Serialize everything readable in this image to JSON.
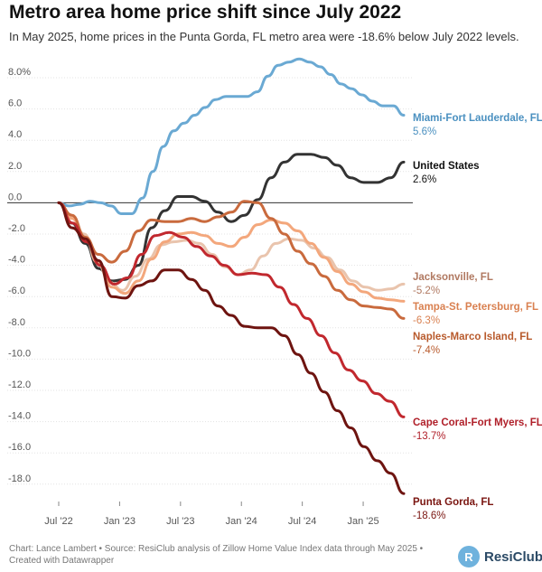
{
  "header": {
    "title": "Metro area home price shift since July 2022",
    "subtitle": "In May 2025, home prices in the Punta Gorda, FL metro area were -18.6% below July 2022 levels."
  },
  "footer": {
    "credit": "Chart: Lance Lambert • Source: ResiClub analysis of Zillow Home Value Index data through May 2025 • Created with Datawrapper"
  },
  "brand": {
    "name": "ResiClub",
    "icon": "resiclub-logo-icon"
  },
  "chart_data": {
    "type": "line",
    "title": "Metro area home price shift since July 2022",
    "xlabel": "",
    "ylabel": "",
    "ylim": [
      -18.6,
      9.2
    ],
    "xlim": [
      0,
      34
    ],
    "x_ticks": [
      {
        "month": 0,
        "label": "Jul '22"
      },
      {
        "month": 6,
        "label": "Jan '23"
      },
      {
        "month": 12,
        "label": "Jul '23"
      },
      {
        "month": 18,
        "label": "Jan '24"
      },
      {
        "month": 24,
        "label": "Jul '24"
      },
      {
        "month": 30,
        "label": "Jan '25"
      }
    ],
    "y_ticks": [
      {
        "value": 8,
        "label": "8.0%"
      },
      {
        "value": 6,
        "label": "6.0"
      },
      {
        "value": 4,
        "label": "4.0"
      },
      {
        "value": 2,
        "label": "2.0"
      },
      {
        "value": 0,
        "label": "0.0"
      },
      {
        "value": -2,
        "label": "-2.0"
      },
      {
        "value": -4,
        "label": "-4.0"
      },
      {
        "value": -6,
        "label": "-6.0"
      },
      {
        "value": -8,
        "label": "-8.0"
      },
      {
        "value": -10,
        "label": "-10.0"
      },
      {
        "value": -12,
        "label": "-12.0"
      },
      {
        "value": -14,
        "label": "-14.0"
      },
      {
        "value": -16,
        "label": "-16.0"
      },
      {
        "value": -18,
        "label": "-18.0"
      }
    ],
    "series": [
      {
        "key": "miami",
        "name": "Miami-Fort Lauderdale, FL",
        "final_label": "5.6%",
        "color": "#6aa9d3",
        "name_color": "#4a90c0",
        "values": [
          0,
          -0.2,
          -0.1,
          0.1,
          0,
          -0.2,
          -0.7,
          -0.7,
          0.3,
          2.0,
          3.6,
          4.6,
          5.1,
          5.6,
          6.1,
          6.6,
          6.8,
          6.8,
          6.8,
          7.1,
          8.1,
          8.8,
          9.0,
          9.2,
          9.0,
          8.7,
          8.2,
          7.6,
          7.3,
          6.9,
          6.5,
          6.2,
          6.2,
          5.6
        ]
      },
      {
        "key": "us",
        "name": "United States",
        "final_label": "2.6%",
        "color": "#333333",
        "name_color": "#111111",
        "values": [
          0,
          -1.3,
          -2.6,
          -4.2,
          -5.0,
          -4.9,
          -4.0,
          -1.6,
          -0.5,
          0.4,
          0.4,
          0.1,
          -0.6,
          -1.2,
          -0.8,
          0.2,
          1.6,
          2.6,
          3.1,
          3.1,
          2.9,
          2.4,
          1.6,
          1.3,
          1.3,
          1.6,
          2.6
        ]
      },
      {
        "key": "jacksonville",
        "name": "Jacksonville, FL",
        "final_label": "-5.2%",
        "color": "#e9c4ad",
        "name_color": "#b07860",
        "values": [
          0,
          -0.9,
          -2.0,
          -3.8,
          -5.1,
          -5.6,
          -4.7,
          -3.6,
          -2.7,
          -2.5,
          -2.4,
          -2.6,
          -3.3,
          -4.1,
          -4.6,
          -4.3,
          -3.4,
          -2.6,
          -2.3,
          -2.4,
          -2.9,
          -3.5,
          -4.3,
          -5.0,
          -5.4,
          -5.6,
          -5.5,
          -5.2
        ]
      },
      {
        "key": "tampa",
        "name": "Tampa-St. Petersburg, FL",
        "final_label": "-6.3%",
        "color": "#f3a77c",
        "name_color": "#d98050",
        "values": [
          0,
          -1.0,
          -2.2,
          -3.9,
          -5.4,
          -5.8,
          -5.0,
          -3.6,
          -2.5,
          -2.0,
          -1.9,
          -2.1,
          -2.6,
          -2.8,
          -2.2,
          -1.4,
          -1.1,
          -1.3,
          -1.8,
          -2.6,
          -3.5,
          -4.4,
          -5.2,
          -5.7,
          -6.1,
          -6.2,
          -6.3
        ]
      },
      {
        "key": "naples",
        "name": "Naples-Marco Island, FL",
        "final_label": "-7.4%",
        "color": "#c96a3d",
        "name_color": "#b85a2c",
        "values": [
          0,
          -0.8,
          -2.2,
          -3.3,
          -3.8,
          -3.1,
          -1.8,
          -1.1,
          -1.2,
          -1.2,
          -1.0,
          -1.2,
          -0.9,
          -0.6,
          0.1,
          0.0,
          -1.0,
          -2.0,
          -3.1,
          -3.9,
          -4.7,
          -5.6,
          -6.2,
          -6.6,
          -6.7,
          -6.8,
          -7.4
        ]
      },
      {
        "key": "cape",
        "name": "Cape Coral-Fort Myers, FL",
        "final_label": "-13.7%",
        "color": "#c1282e",
        "name_color": "#b0202a",
        "values": [
          0,
          -1.3,
          -2.5,
          -4.0,
          -5.2,
          -4.8,
          -3.3,
          -2.1,
          -1.9,
          -2.2,
          -2.8,
          -3.4,
          -4.0,
          -4.6,
          -4.5,
          -4.6,
          -5.4,
          -6.5,
          -7.4,
          -8.5,
          -9.6,
          -10.7,
          -11.4,
          -12.2,
          -12.7,
          -13.7
        ]
      },
      {
        "key": "punta",
        "name": "Punta Gorda, FL",
        "final_label": "-18.6%",
        "color": "#6e1410",
        "name_color": "#7a1510",
        "values": [
          0,
          -1.6,
          -2.3,
          -3.7,
          -6.0,
          -6.1,
          -5.3,
          -5.0,
          -4.3,
          -4.3,
          -4.9,
          -5.6,
          -6.6,
          -7.2,
          -7.9,
          -8.0,
          -8.0,
          -8.5,
          -9.7,
          -10.9,
          -12.1,
          -13.3,
          -14.4,
          -15.6,
          -16.5,
          -17.3,
          -18.6
        ]
      }
    ]
  }
}
